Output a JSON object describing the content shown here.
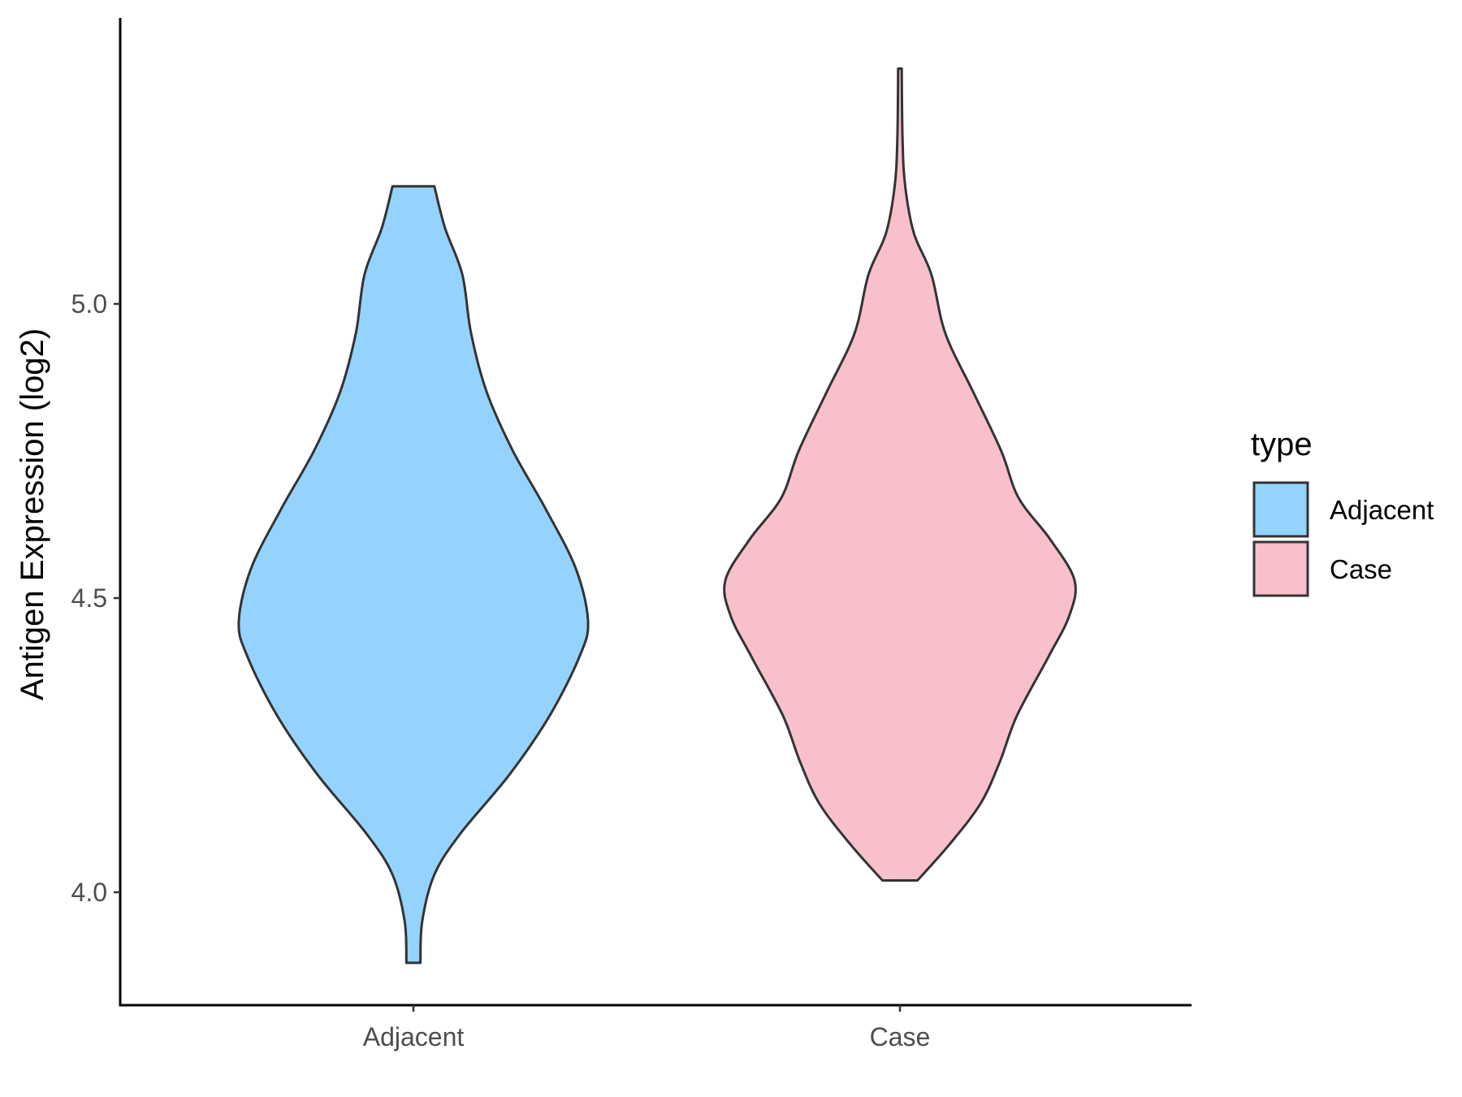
{
  "chart_data": {
    "type": "violin",
    "ylabel": "Antigen Expression (log2)",
    "xlabel": "",
    "categories": [
      "Adjacent",
      "Case"
    ],
    "ylim": [
      3.81,
      5.48
    ],
    "yticks": [
      4.0,
      4.5,
      5.0
    ],
    "ytick_labels": [
      "4.0",
      "4.5",
      "5.0"
    ],
    "grid": false,
    "legend": {
      "title": "type",
      "position": "right",
      "entries": [
        "Adjacent",
        "Case"
      ]
    },
    "colors": {
      "Adjacent": "#94d3fd",
      "Case": "#f7c0cb",
      "outline": "#333333"
    },
    "series": [
      {
        "name": "Adjacent",
        "profile": [
          [
            3.88,
            0.04
          ],
          [
            3.95,
            0.05
          ],
          [
            4.03,
            0.12
          ],
          [
            4.1,
            0.27
          ],
          [
            4.2,
            0.55
          ],
          [
            4.3,
            0.78
          ],
          [
            4.4,
            0.95
          ],
          [
            4.46,
            1.0
          ],
          [
            4.55,
            0.93
          ],
          [
            4.65,
            0.76
          ],
          [
            4.75,
            0.57
          ],
          [
            4.85,
            0.42
          ],
          [
            4.95,
            0.33
          ],
          [
            5.05,
            0.28
          ],
          [
            5.13,
            0.18
          ],
          [
            5.2,
            0.12
          ]
        ]
      },
      {
        "name": "Case",
        "profile": [
          [
            4.02,
            0.1
          ],
          [
            4.08,
            0.28
          ],
          [
            4.15,
            0.46
          ],
          [
            4.22,
            0.57
          ],
          [
            4.3,
            0.67
          ],
          [
            4.4,
            0.85
          ],
          [
            4.47,
            0.97
          ],
          [
            4.53,
            1.0
          ],
          [
            4.6,
            0.86
          ],
          [
            4.67,
            0.68
          ],
          [
            4.75,
            0.58
          ],
          [
            4.85,
            0.42
          ],
          [
            4.95,
            0.26
          ],
          [
            5.05,
            0.18
          ],
          [
            5.12,
            0.08
          ],
          [
            5.2,
            0.03
          ],
          [
            5.28,
            0.015
          ],
          [
            5.4,
            0.01
          ]
        ]
      }
    ]
  }
}
